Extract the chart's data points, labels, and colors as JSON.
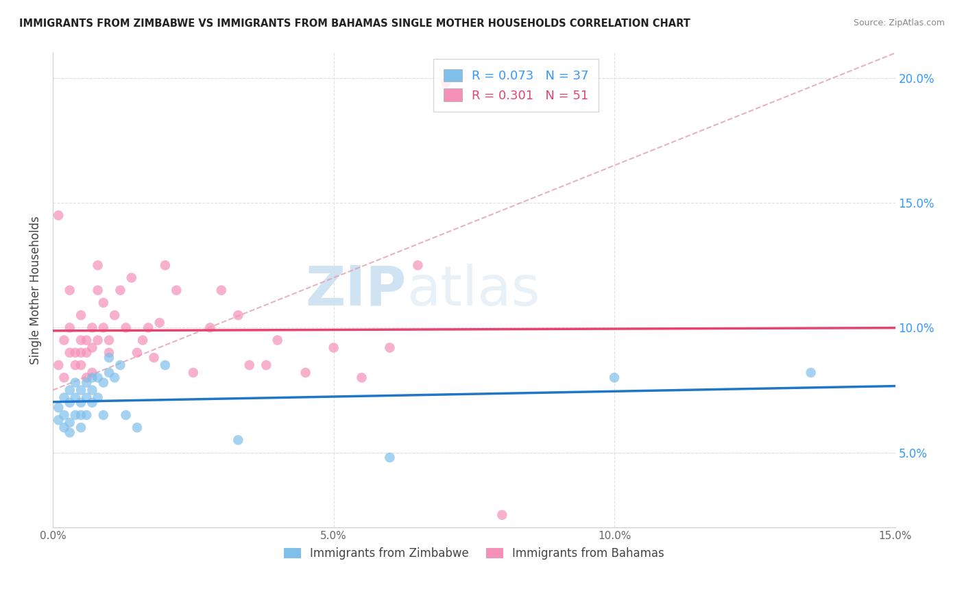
{
  "title": "IMMIGRANTS FROM ZIMBABWE VS IMMIGRANTS FROM BAHAMAS SINGLE MOTHER HOUSEHOLDS CORRELATION CHART",
  "source": "Source: ZipAtlas.com",
  "ylabel": "Single Mother Households",
  "legend_label1": "Immigrants from Zimbabwe",
  "legend_label2": "Immigrants from Bahamas",
  "r1": 0.073,
  "n1": 37,
  "r2": 0.301,
  "n2": 51,
  "color1": "#7fbfea",
  "color2": "#f590b8",
  "trendline1_color": "#2176c7",
  "trendline2_color": "#e8436f",
  "dashed_line_color": "#e0a0b0",
  "xlim": [
    0.0,
    0.15
  ],
  "ylim": [
    0.02,
    0.21
  ],
  "plot_ylim": [
    0.02,
    0.21
  ],
  "xticks": [
    0.0,
    0.05,
    0.1,
    0.15
  ],
  "yticks_right": [
    0.05,
    0.1,
    0.15,
    0.2
  ],
  "xtick_labels": [
    "0.0%",
    "5.0%",
    "10.0%",
    "15.0%"
  ],
  "ytick_labels_right": [
    "5.0%",
    "10.0%",
    "15.0%",
    "20.0%"
  ],
  "zimbabwe_x": [
    0.001,
    0.001,
    0.002,
    0.002,
    0.002,
    0.003,
    0.003,
    0.003,
    0.003,
    0.004,
    0.004,
    0.004,
    0.005,
    0.005,
    0.005,
    0.005,
    0.006,
    0.006,
    0.006,
    0.007,
    0.007,
    0.007,
    0.008,
    0.008,
    0.009,
    0.009,
    0.01,
    0.01,
    0.011,
    0.012,
    0.013,
    0.015,
    0.02,
    0.033,
    0.06,
    0.1,
    0.135
  ],
  "zimbabwe_y": [
    0.063,
    0.068,
    0.06,
    0.065,
    0.072,
    0.058,
    0.062,
    0.07,
    0.075,
    0.065,
    0.072,
    0.078,
    0.06,
    0.065,
    0.07,
    0.075,
    0.065,
    0.072,
    0.078,
    0.07,
    0.075,
    0.08,
    0.072,
    0.08,
    0.065,
    0.078,
    0.082,
    0.088,
    0.08,
    0.085,
    0.065,
    0.06,
    0.085,
    0.055,
    0.048,
    0.08,
    0.082
  ],
  "bahamas_x": [
    0.001,
    0.001,
    0.002,
    0.002,
    0.003,
    0.003,
    0.003,
    0.004,
    0.004,
    0.005,
    0.005,
    0.005,
    0.005,
    0.006,
    0.006,
    0.006,
    0.007,
    0.007,
    0.007,
    0.008,
    0.008,
    0.008,
    0.009,
    0.009,
    0.01,
    0.01,
    0.011,
    0.012,
    0.013,
    0.014,
    0.015,
    0.016,
    0.017,
    0.018,
    0.019,
    0.02,
    0.022,
    0.025,
    0.028,
    0.03,
    0.033,
    0.035,
    0.038,
    0.04,
    0.045,
    0.05,
    0.055,
    0.06,
    0.065,
    0.07,
    0.08
  ],
  "bahamas_y": [
    0.085,
    0.145,
    0.08,
    0.095,
    0.09,
    0.1,
    0.115,
    0.085,
    0.09,
    0.085,
    0.09,
    0.095,
    0.105,
    0.08,
    0.09,
    0.095,
    0.082,
    0.092,
    0.1,
    0.095,
    0.115,
    0.125,
    0.1,
    0.11,
    0.09,
    0.095,
    0.105,
    0.115,
    0.1,
    0.12,
    0.09,
    0.095,
    0.1,
    0.088,
    0.102,
    0.125,
    0.115,
    0.082,
    0.1,
    0.115,
    0.105,
    0.085,
    0.085,
    0.095,
    0.082,
    0.092,
    0.08,
    0.092,
    0.125,
    0.198,
    0.025
  ],
  "watermark_zip": "ZIP",
  "watermark_atlas": "atlas",
  "background_color": "#ffffff",
  "grid_color": "#d8d8d8"
}
